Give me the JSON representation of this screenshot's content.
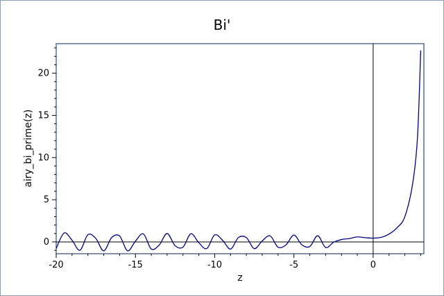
{
  "chart_data": {
    "type": "line",
    "title": "Bi'",
    "xlabel": "z",
    "ylabel": "airy_bi_prime(z)",
    "xlim": [
      -20,
      3.2
    ],
    "ylim": [
      -1.4,
      23.5
    ],
    "x_ticks": [
      -20,
      -15,
      -10,
      -5,
      0
    ],
    "x_tick_labels": [
      "-20",
      "-15",
      "-10",
      "-5",
      "0"
    ],
    "y_ticks": [
      0,
      5,
      10,
      15,
      20
    ],
    "y_tick_labels": [
      "0",
      "5",
      "10",
      "15",
      "20"
    ],
    "grid": false,
    "legend": "none",
    "colors": {
      "series": "#000080",
      "axes": "#000000",
      "frame": "#5a6e8a"
    },
    "series": [
      {
        "x": [
          -20,
          -19.5,
          -19,
          -18.5,
          -18,
          -17.5,
          -17,
          -16.5,
          -16,
          -15.5,
          -15,
          -14.5,
          -14,
          -13.5,
          -13,
          -12.5,
          -12,
          -11.5,
          -11,
          -10.5,
          -10,
          -9.5,
          -9,
          -8.5,
          -8,
          -7.5,
          -7,
          -6.5,
          -6,
          -5.5,
          -5,
          -4.5,
          -4,
          -3.5,
          -3,
          -2.5,
          -2,
          -1.5,
          -1,
          -0.5,
          0,
          0.5,
          1,
          1.5,
          2,
          2.5,
          2.8,
          3
        ],
        "values": [
          -0.77,
          1.06,
          0.2,
          -0.99,
          0.86,
          0.41,
          -1.06,
          0.52,
          0.71,
          -1.05,
          0.09,
          0.95,
          -0.84,
          -0.37,
          1.0,
          -0.45,
          -0.62,
          0.97,
          -0.1,
          -0.79,
          0.83,
          0.19,
          -0.85,
          0.52,
          0.51,
          -0.8,
          0.11,
          0.71,
          -0.63,
          -0.35,
          0.81,
          -0.34,
          -0.55,
          0.73,
          -0.66,
          -0.05,
          0.28,
          0.4,
          0.59,
          0.5,
          0.45,
          0.54,
          0.93,
          1.67,
          3.0,
          7.0,
          12.5,
          22.7
        ]
      }
    ]
  }
}
